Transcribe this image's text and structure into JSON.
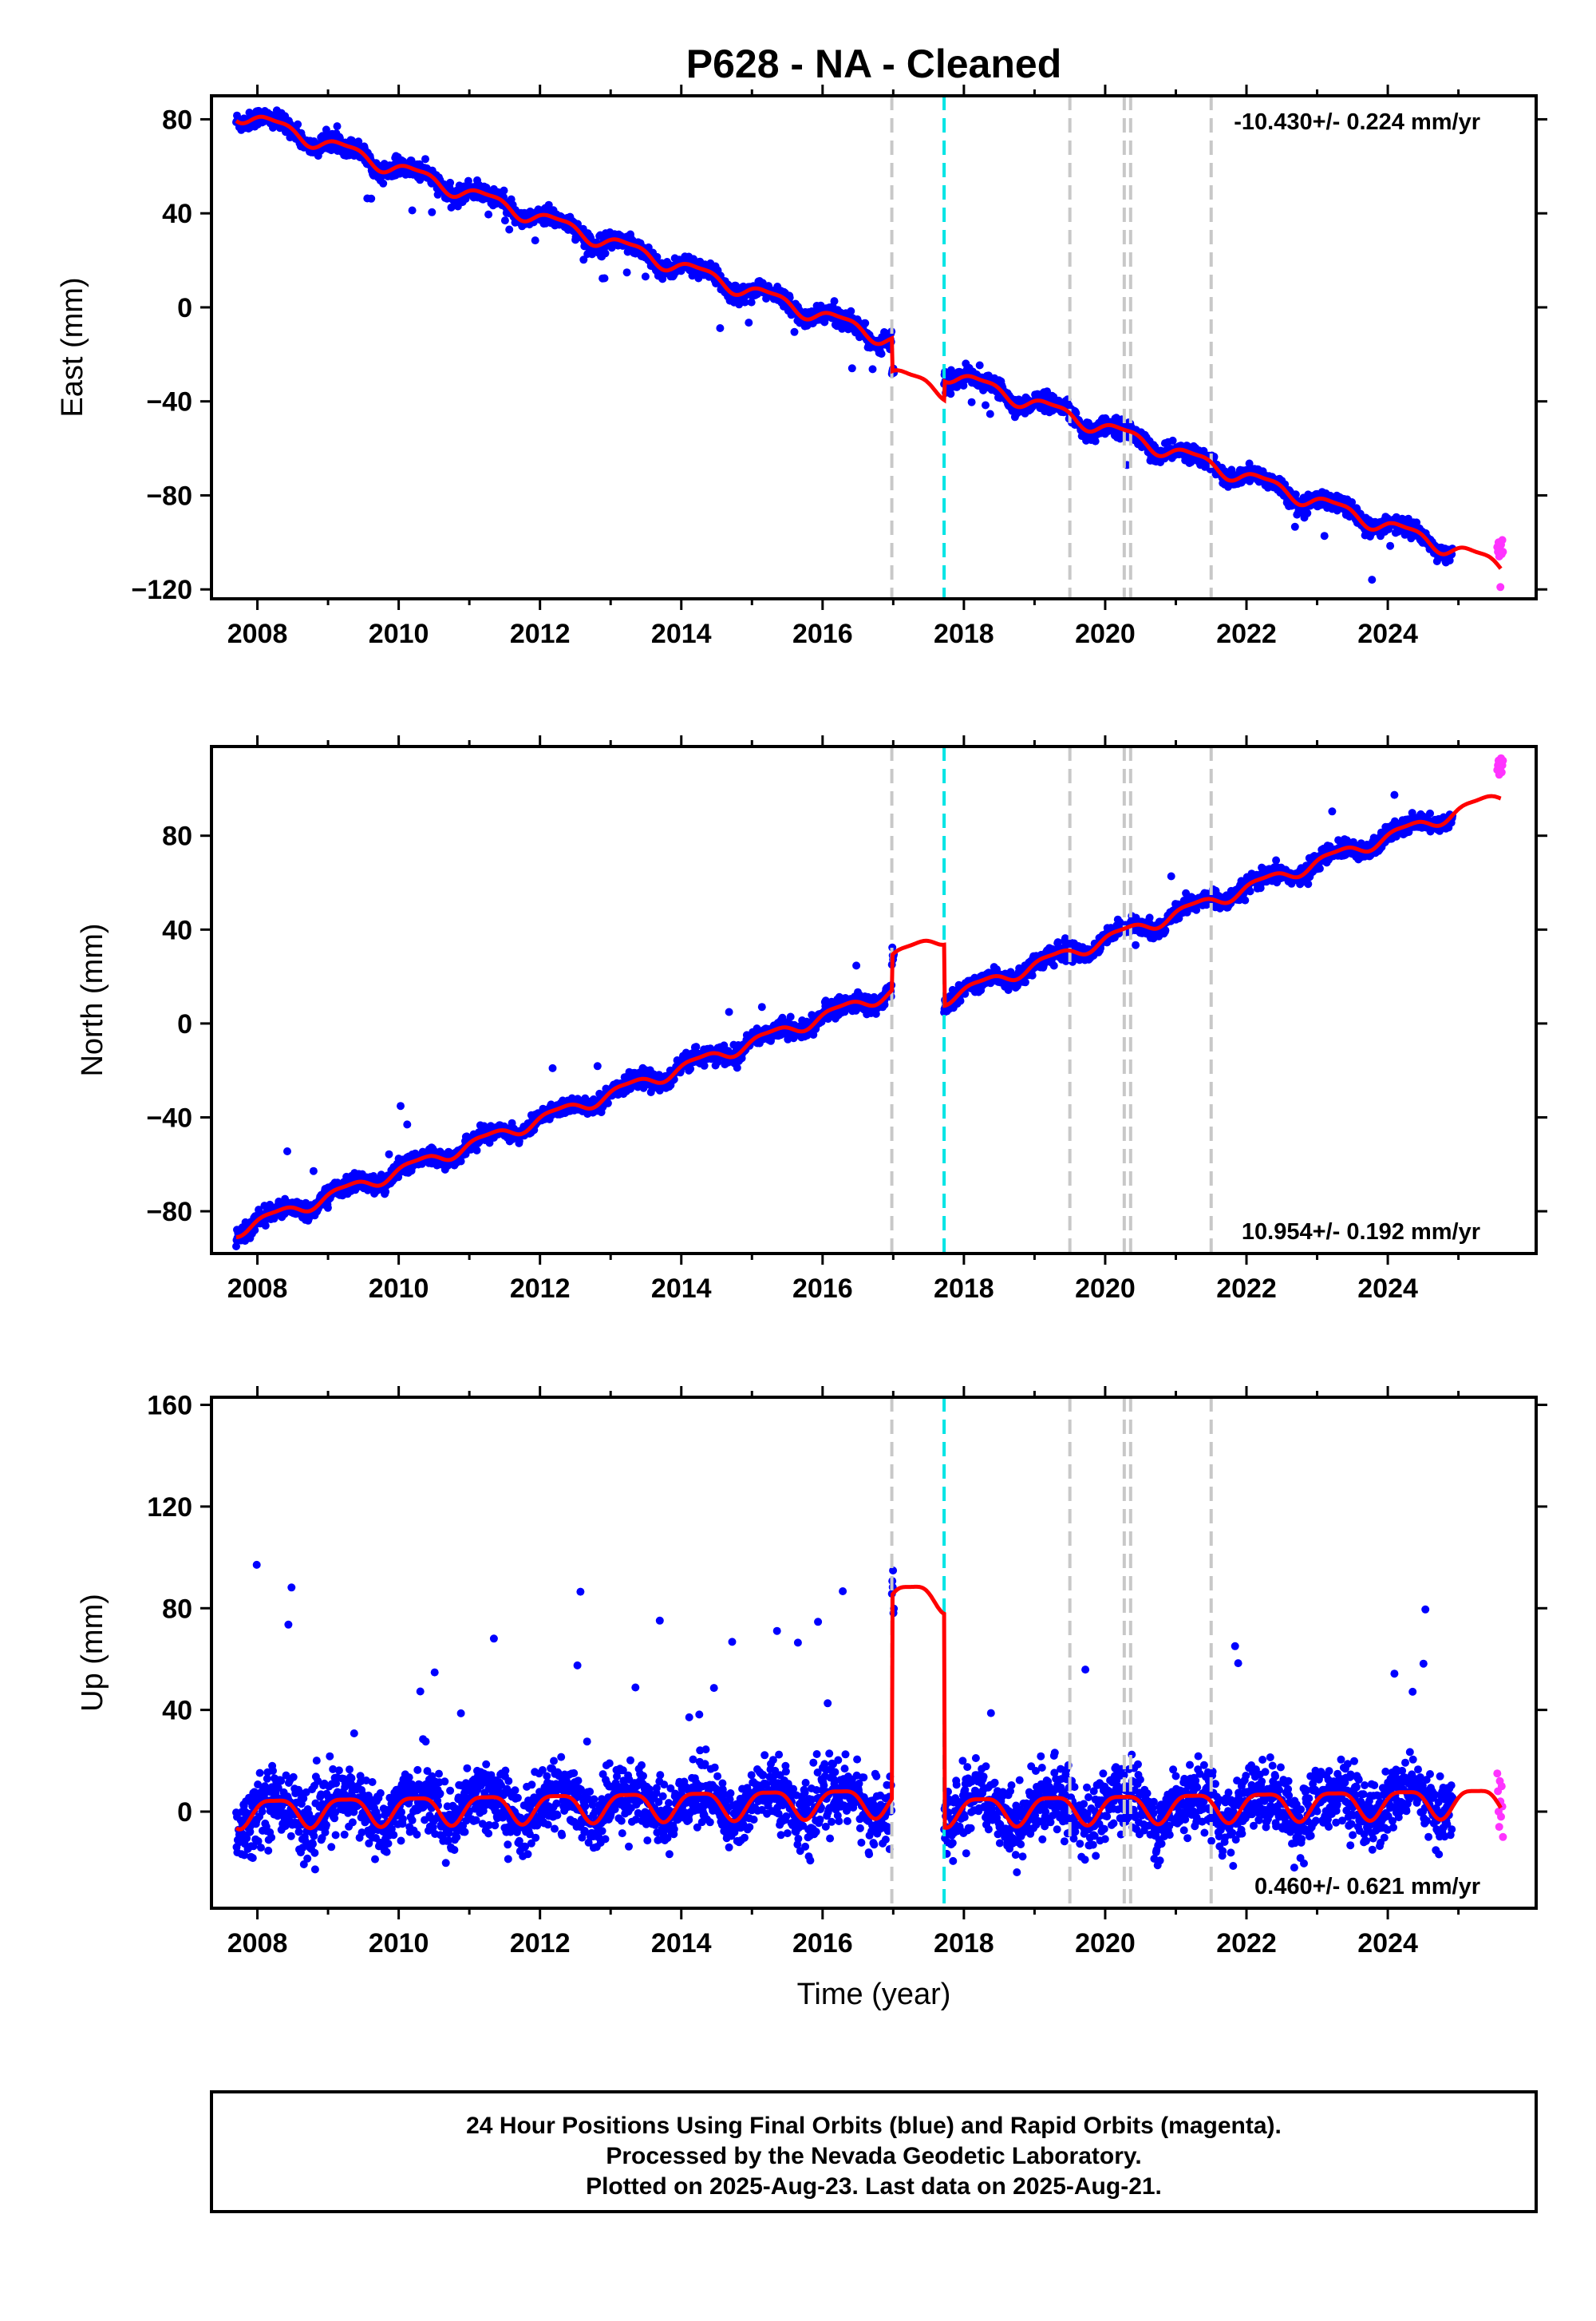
{
  "title": "P628  - NA - Cleaned",
  "footer": {
    "lines": [
      "24 Hour Positions Using Final Orbits (blue) and Rapid Orbits (magenta).",
      "Processed by the Nevada Geodetic Laboratory.",
      "Plotted on 2025-Aug-23. Last data on 2025-Aug-21."
    ]
  },
  "colors": {
    "final": "#0000ff",
    "rapid": "#ff33ff",
    "model": "#ff0000",
    "antenna_event": "#c8c8c8",
    "equipment_event": "#00e5e5"
  },
  "chart_data": [
    {
      "type": "scatter",
      "ylabel": "East (mm)",
      "xlim": [
        2007.35,
        2026.1
      ],
      "ylim": [
        -124,
        90
      ],
      "xticks": [
        2008,
        2010,
        2012,
        2014,
        2016,
        2018,
        2020,
        2022,
        2024
      ],
      "yticks": [
        -120,
        -80,
        -40,
        0,
        40,
        80
      ],
      "rate_label": "-10.430+/- 0.224 mm/yr",
      "rate_position": "top-right",
      "model": {
        "rate": -10.43,
        "intercept": 83,
        "t0": 2007.7,
        "annual_amp": 3.0,
        "semiannual_amp": 1.0,
        "offsets": [
          {
            "t": 2016.98,
            "v": -14
          },
          {
            "t": 2017.72,
            "v": 8
          }
        ],
        "noise": 1.8,
        "notes": "rapid orbit points at end"
      },
      "rapid_points": {
        "start": 2025.55,
        "end": 2025.63,
        "values": [
          -102,
          -104,
          -100,
          -106,
          -103,
          -119,
          -101,
          -105,
          -99,
          -104
        ]
      }
    },
    {
      "type": "scatter",
      "ylabel": "North (mm)",
      "xlim": [
        2007.35,
        2026.1
      ],
      "ylim": [
        -98,
        118
      ],
      "xticks": [
        2008,
        2010,
        2012,
        2014,
        2016,
        2018,
        2020,
        2022,
        2024
      ],
      "yticks": [
        -80,
        -40,
        0,
        40,
        80
      ],
      "rate_label": "10.954+/- 0.192 mm/yr",
      "rate_position": "bottom-right",
      "model": {
        "rate": 10.954,
        "intercept": -88,
        "t0": 2007.7,
        "annual_amp": 2.5,
        "semiannual_amp": 0.8,
        "offsets": [
          {
            "t": 2016.98,
            "v": 15
          },
          {
            "t": 2017.72,
            "v": -26
          }
        ],
        "noise": 1.8
      },
      "rapid_points": {
        "start": 2025.55,
        "end": 2025.63,
        "values": [
          108,
          110,
          112,
          106,
          111,
          109,
          113,
          107,
          110,
          112
        ]
      }
    },
    {
      "type": "scatter",
      "ylabel": "Up (mm)",
      "xlabel": "Time (year)",
      "xlim": [
        2007.35,
        2026.1
      ],
      "ylim": [
        -38,
        163
      ],
      "xticks": [
        2008,
        2010,
        2012,
        2014,
        2016,
        2018,
        2020,
        2022,
        2024
      ],
      "yticks": [
        0,
        40,
        80,
        120,
        160
      ],
      "rate_label": "0.460+/- 0.621 mm/yr",
      "rate_position": "bottom-right",
      "model": {
        "rate": 0.46,
        "intercept": 0,
        "t0": 2007.7,
        "annual_amp": 5.5,
        "semiannual_amp": 1.5,
        "offsets": [
          {
            "t": 2016.98,
            "v": 80
          },
          {
            "t": 2017.72,
            "v": -84
          }
        ],
        "noise": 6.5
      },
      "rapid_points": {
        "start": 2025.55,
        "end": 2025.63,
        "values": [
          15,
          8,
          0,
          -6,
          12,
          4,
          -2,
          10,
          2,
          -10
        ]
      }
    }
  ],
  "events": {
    "antenna_changes": [
      2016.98,
      2019.5,
      2020.27,
      2020.36,
      2021.5
    ],
    "equipment_changes": [
      2017.72
    ]
  }
}
